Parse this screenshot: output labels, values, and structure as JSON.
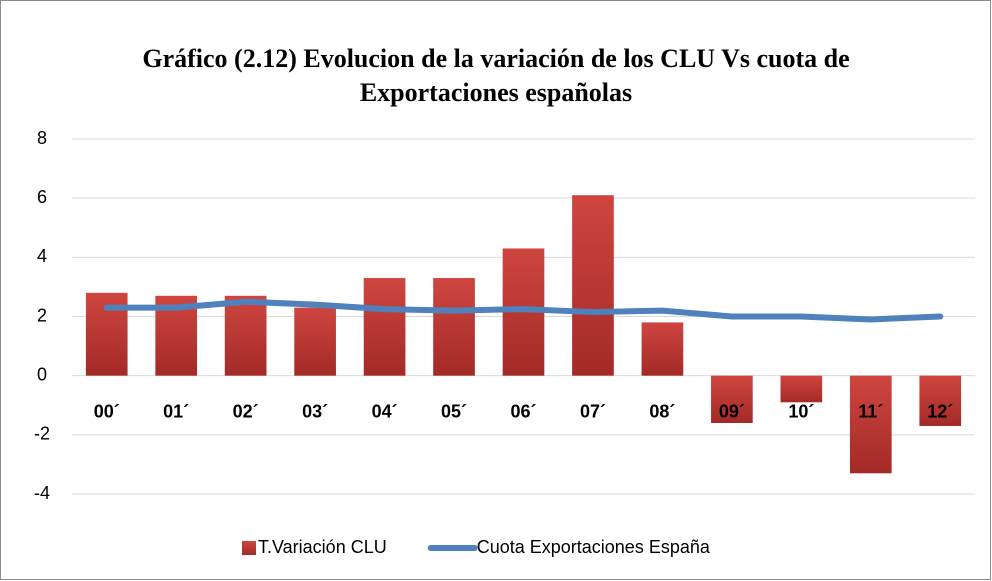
{
  "chart_data": {
    "type": "bar",
    "title": "Gráfico (2.12) Evolucion de la variación de los CLU Vs cuota de Exportaciones españolas",
    "categories": [
      "00´",
      "01´",
      "02´",
      "03´",
      "04´",
      "05´",
      "06´",
      "07´",
      "08´",
      "09´",
      "10´",
      "11´",
      "12´"
    ],
    "series": [
      {
        "name": "T.Variación CLU",
        "type": "bar",
        "color": "#c0504d",
        "values": [
          2.8,
          2.7,
          2.7,
          2.3,
          3.3,
          3.3,
          4.3,
          6.1,
          1.8,
          -1.6,
          -0.9,
          -3.3,
          -1.7
        ]
      },
      {
        "name": "Cuota Exportaciones España",
        "type": "line",
        "color": "#4f81bd",
        "values": [
          2.3,
          2.3,
          2.5,
          2.4,
          2.25,
          2.2,
          2.25,
          2.15,
          2.2,
          2.0,
          2.0,
          1.9,
          2.0
        ]
      }
    ],
    "ylim": [
      -4,
      8
    ],
    "yticks": [
      -4,
      -2,
      0,
      2,
      4,
      6,
      8
    ],
    "grid": true,
    "legend": "bottom"
  }
}
